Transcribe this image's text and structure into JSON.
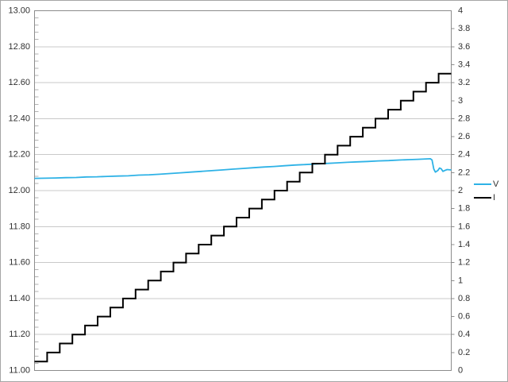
{
  "chart_data": {
    "type": "line",
    "title": "",
    "xlabel": "",
    "x_axis": {
      "tick_labels_visible": false
    },
    "left_axis": {
      "label": "",
      "min": 11.0,
      "max": 13.0,
      "major_step": 0.2,
      "minor_step": 0.04,
      "tick_labels": [
        "13.00",
        "12.80",
        "12.60",
        "12.40",
        "12.20",
        "12.00",
        "11.80",
        "11.60",
        "11.40",
        "11.20",
        "11.00"
      ]
    },
    "right_axis": {
      "label": "",
      "min": 0,
      "max": 4,
      "major_step": 0.2,
      "tick_labels": [
        "4",
        "3.8",
        "3.6",
        "3.4",
        "3.2",
        "3",
        "2.8",
        "2.6",
        "2.4",
        "2.2",
        "2",
        "1.8",
        "1.6",
        "1.4",
        "1.2",
        "1",
        "0.8",
        "0.6",
        "0.4",
        "0.2",
        "0"
      ]
    },
    "grid": {
      "show": true,
      "left_axis_interval": 0.2
    },
    "series": [
      {
        "name": "V",
        "axis": "left",
        "style": "line",
        "color": "#2eb2e6",
        "points": [
          [
            0.0,
            12.068
          ],
          [
            0.025,
            12.069
          ],
          [
            0.05,
            12.07
          ],
          [
            0.075,
            12.072
          ],
          [
            0.1,
            12.073
          ],
          [
            0.125,
            12.076
          ],
          [
            0.15,
            12.077
          ],
          [
            0.175,
            12.079
          ],
          [
            0.2,
            12.081
          ],
          [
            0.225,
            12.082
          ],
          [
            0.25,
            12.086
          ],
          [
            0.275,
            12.088
          ],
          [
            0.3,
            12.091
          ],
          [
            0.325,
            12.095
          ],
          [
            0.35,
            12.099
          ],
          [
            0.375,
            12.103
          ],
          [
            0.4,
            12.107
          ],
          [
            0.425,
            12.111
          ],
          [
            0.45,
            12.115
          ],
          [
            0.475,
            12.119
          ],
          [
            0.5,
            12.123
          ],
          [
            0.525,
            12.127
          ],
          [
            0.55,
            12.131
          ],
          [
            0.575,
            12.134
          ],
          [
            0.6,
            12.138
          ],
          [
            0.625,
            12.142
          ],
          [
            0.65,
            12.145
          ],
          [
            0.675,
            12.148
          ],
          [
            0.7,
            12.151
          ],
          [
            0.725,
            12.154
          ],
          [
            0.75,
            12.157
          ],
          [
            0.775,
            12.16
          ],
          [
            0.8,
            12.162
          ],
          [
            0.825,
            12.165
          ],
          [
            0.85,
            12.167
          ],
          [
            0.875,
            12.17
          ],
          [
            0.9,
            12.172
          ],
          [
            0.92,
            12.174
          ],
          [
            0.94,
            12.176
          ],
          [
            0.95,
            12.177
          ],
          [
            0.954,
            12.17
          ],
          [
            0.958,
            12.12
          ],
          [
            0.962,
            12.103
          ],
          [
            0.968,
            12.112
          ],
          [
            0.972,
            12.126
          ],
          [
            0.976,
            12.121
          ],
          [
            0.98,
            12.107
          ],
          [
            0.985,
            12.112
          ],
          [
            0.99,
            12.117
          ],
          [
            1.0,
            12.115
          ]
        ]
      },
      {
        "name": "I",
        "axis": "right",
        "style": "steps",
        "color": "#000000",
        "step_values": [
          0.1,
          0.2,
          0.3,
          0.4,
          0.5,
          0.6,
          0.7,
          0.8,
          0.9,
          1.0,
          1.1,
          1.2,
          1.3,
          1.4,
          1.5,
          1.6,
          1.7,
          1.8,
          1.9,
          2.0,
          2.1,
          2.2,
          2.3,
          2.4,
          2.5,
          2.6,
          2.7,
          2.8,
          2.9,
          3.0,
          3.1,
          3.2,
          3.3
        ]
      }
    ],
    "legend": {
      "position": "right",
      "items": [
        {
          "label": "V",
          "color": "#2eb2e6"
        },
        {
          "label": "I",
          "color": "#000000"
        }
      ]
    }
  },
  "frame": {
    "background": "#ffffff",
    "outer_border_color": "#a6a6a6",
    "plot_border_color": "#8c8c8c",
    "grid_color": "#c9c9c9",
    "minor_tick_color": "#b3b3b3",
    "tick_color": "#8c8c8c",
    "text_color": "#303030"
  }
}
